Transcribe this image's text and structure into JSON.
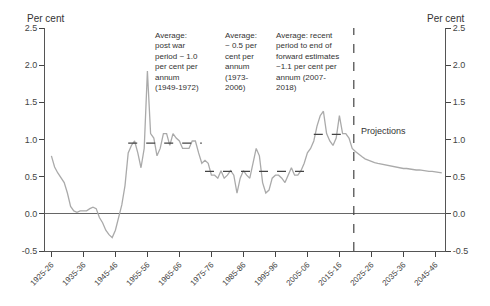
{
  "chart_data": {
    "type": "line",
    "y_label": "Per cent",
    "y2_label": "Per cent",
    "grid": false,
    "series": [
      {
        "x": [
          1925,
          1926,
          1927,
          1928,
          1929,
          1930,
          1931,
          1932,
          1933,
          1934,
          1935,
          1936,
          1937,
          1938,
          1939,
          1940,
          1941,
          1942,
          1943,
          1944,
          1945,
          1946,
          1947,
          1948,
          1949,
          1950,
          1951,
          1952,
          1953,
          1954,
          1955,
          1956,
          1957,
          1958,
          1959,
          1960,
          1961,
          1962,
          1963,
          1964,
          1965,
          1966,
          1967,
          1968,
          1969,
          1970,
          1971,
          1972,
          1973,
          1974,
          1975,
          1976,
          1977,
          1978,
          1979,
          1980,
          1981,
          1982,
          1983,
          1984,
          1985,
          1986,
          1987,
          1988,
          1989,
          1990,
          1991,
          1992,
          1993,
          1994,
          1995,
          1996,
          1997,
          1998,
          1999,
          2000,
          2001,
          2002,
          2003,
          2004,
          2005,
          2006,
          2007,
          2008,
          2009,
          2010,
          2011,
          2012,
          2013,
          2014,
          2015,
          2016,
          2017,
          2018
        ],
        "values": [
          0.78,
          0.63,
          0.55,
          0.48,
          0.42,
          0.28,
          0.1,
          0.04,
          0.02,
          0.04,
          0.04,
          0.04,
          0.07,
          0.09,
          0.07,
          -0.05,
          -0.12,
          -0.22,
          -0.28,
          -0.32,
          -0.22,
          -0.05,
          0.12,
          0.38,
          0.82,
          0.92,
          0.98,
          0.82,
          0.62,
          0.88,
          1.92,
          1.08,
          1.02,
          0.78,
          0.88,
          1.08,
          1.08,
          0.92,
          1.08,
          1.02,
          0.98,
          0.88,
          0.88,
          0.88,
          0.98,
          0.98,
          0.82,
          0.68,
          0.72,
          0.68,
          0.52,
          0.52,
          0.48,
          0.58,
          0.48,
          0.52,
          0.58,
          0.52,
          0.28,
          0.48,
          0.58,
          0.52,
          0.48,
          0.68,
          0.88,
          0.78,
          0.42,
          0.28,
          0.32,
          0.48,
          0.52,
          0.52,
          0.48,
          0.42,
          0.52,
          0.62,
          0.52,
          0.52,
          0.58,
          0.68,
          0.82,
          0.88,
          0.98,
          1.18,
          1.32,
          1.38,
          1.08,
          0.98,
          0.92,
          1.02,
          1.32,
          1.08,
          1.08,
          1.02
        ],
        "color": "#aaaaaa",
        "line_style": "solid"
      },
      {
        "x": [
          2018,
          2019,
          2020,
          2021,
          2022,
          2023,
          2024,
          2025,
          2026,
          2027,
          2028,
          2029,
          2030,
          2031,
          2032,
          2033,
          2034,
          2035,
          2036,
          2037,
          2038,
          2039,
          2040,
          2041,
          2042,
          2043,
          2044,
          2045,
          2046,
          2047
        ],
        "values": [
          1.02,
          0.88,
          0.84,
          0.8,
          0.77,
          0.74,
          0.72,
          0.7,
          0.69,
          0.68,
          0.67,
          0.66,
          0.65,
          0.64,
          0.63,
          0.62,
          0.62,
          0.61,
          0.61,
          0.6,
          0.6,
          0.59,
          0.59,
          0.58,
          0.58,
          0.57,
          0.57,
          0.56,
          0.56,
          0.55
        ],
        "color": "#aaaaaa",
        "line_style": "solid"
      },
      {
        "x": [
          1949,
          1972
        ],
        "values": [
          0.95,
          0.95
        ],
        "color": "#444444",
        "line_style": "dashed"
      },
      {
        "x": [
          1973,
          2006
        ],
        "values": [
          0.57,
          0.57
        ],
        "color": "#444444",
        "line_style": "dashed"
      },
      {
        "x": [
          2007,
          2018
        ],
        "values": [
          1.07,
          1.07
        ],
        "color": "#444444",
        "line_style": "dashed"
      }
    ],
    "vertical_line": {
      "x": 2019.5,
      "color": "#444444",
      "line_style": "dashed"
    },
    "annotations": [
      "Average:\npost war\nperiod ~ 1.0\nper cent per\nannum\n(1949-1972)",
      "Average:\n~ 0.5 per\ncent per\nannum\n(1973-\n2006)",
      "Average: recent\nperiod to end of\nforward estimates\n~1.1 per cent per\nannum (2007-\n2018)",
      "Projections"
    ],
    "xlim": [
      1923,
      2048
    ],
    "xticks": [
      {
        "value": 1925,
        "label": "1925-26"
      },
      {
        "value": 1935,
        "label": "1935-36"
      },
      {
        "value": 1945,
        "label": "1945-46"
      },
      {
        "value": 1955,
        "label": "1955-56"
      },
      {
        "value": 1965,
        "label": "1965-66"
      },
      {
        "value": 1975,
        "label": "1975-76"
      },
      {
        "value": 1985,
        "label": "1985-86"
      },
      {
        "value": 1995,
        "label": "1995-96"
      },
      {
        "value": 2005,
        "label": "2005-06"
      },
      {
        "value": 2015,
        "label": "2015-16"
      },
      {
        "value": 2025,
        "label": "2025-26"
      },
      {
        "value": 2035,
        "label": "2035-36"
      },
      {
        "value": 2045,
        "label": "2045-46"
      }
    ],
    "ylim": [
      -0.5,
      2.5
    ],
    "yticks": [
      -0.5,
      {
        "value": 0.0,
        "label": "0.0"
      },
      0.5,
      {
        "value": 1.0,
        "label": "1.0"
      },
      1.5,
      {
        "value": 2.0,
        "label": "2.0"
      },
      2.5
    ],
    "y2lim": [
      -0.5,
      2.5
    ],
    "y2ticks": [
      -0.5,
      {
        "value": 0.0,
        "label": "0.0"
      },
      0.5,
      {
        "value": 1.0,
        "label": "1.0"
      },
      1.5,
      {
        "value": 2.0,
        "label": "2.0"
      },
      2.5
    ]
  }
}
